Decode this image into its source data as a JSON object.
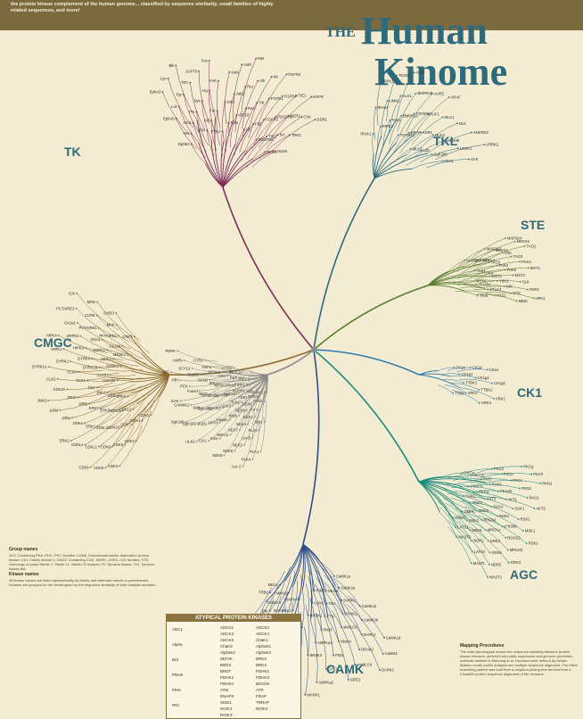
{
  "header": {
    "banner_text": "the protein kinase complement of the human genome... classified by sequence similarity, small families of highly related sequences, and more!",
    "the": "THE",
    "human": "Human",
    "kinome": "Kinome"
  },
  "groups": [
    {
      "name": "TK",
      "color": "#7a2e5a"
    },
    {
      "name": "TKL",
      "color": "#2e6a7a"
    },
    {
      "name": "STE",
      "color": "#5a7a2e"
    },
    {
      "name": "CK1",
      "color": "#2e7aaa"
    },
    {
      "name": "AGC",
      "color": "#1a8a7a"
    },
    {
      "name": "CAMK",
      "color": "#2e4e8a"
    },
    {
      "name": "CMGC",
      "color": "#8a6a2e"
    }
  ],
  "kinase_labels": {
    "TK": [
      "EphB2",
      "EphA5",
      "EphA3",
      "Yes",
      "Lck",
      "Lyn",
      "HCK",
      "Fgr",
      "Blk",
      "ITK",
      "TEC",
      "BTK",
      "Syk",
      "ZAP70",
      "Abl",
      "Arg",
      "Fes",
      "Fer",
      "FAK",
      "PYK2",
      "Jak1",
      "Jak2",
      "Tyk2",
      "Jak3",
      "InsR",
      "IGF1R",
      "Ret",
      "Met",
      "Ron",
      "Alk",
      "Ltk",
      "Trk",
      "Kit",
      "Flt3",
      "FGFR1",
      "FGFR2",
      "FGFR3",
      "FGFR4",
      "PDGFRa",
      "PDGFRb",
      "TIE1",
      "TIE2",
      "HER2",
      "EGFR",
      "Src",
      "CSK",
      "ROR1",
      "TRKC",
      "DDR1",
      "MuSK"
    ],
    "TKL": [
      "IRAK1",
      "IRAK4",
      "RIPK1",
      "RIPK2",
      "LIMK1",
      "TESK1",
      "TAK1",
      "ALK1",
      "ALK4",
      "BMPR1A",
      "BMPR1B",
      "TGFbR1",
      "TGFbR2",
      "ActR2",
      "BRAF",
      "RAF1",
      "ARAF",
      "KSR1",
      "MLK1",
      "MLK2",
      "MLK3",
      "DLK",
      "LZK",
      "HH498",
      "ANKRD3",
      "SgK288",
      "LRRK1",
      "LRRK2",
      "MLKL",
      "ZAK"
    ],
    "STE": [
      "MAP2K1",
      "MAP2K2",
      "MAP2K4",
      "MAP2K7",
      "MEKK1",
      "MEKK2",
      "MEKK3",
      "ASK",
      "TAO1",
      "TAO2",
      "TAO3",
      "PAK1",
      "PAK2",
      "PAK4",
      "PAK5",
      "PAK6",
      "MST1",
      "MST2",
      "MST3",
      "MST4",
      "YSK1",
      "SLK",
      "LOK",
      "NIK",
      "OSR1",
      "STLK3",
      "GCK",
      "HPK1",
      "KHS1",
      "MINK",
      "TNIK"
    ],
    "CK1": [
      "CK1a",
      "CK1d",
      "CK1e",
      "CK1g1",
      "CK1g2",
      "CK1g3",
      "TTBK1",
      "TTBK2",
      "VRK1",
      "VRK2",
      "VRK3",
      "TTBK"
    ],
    "AGC": [
      "PKCa",
      "PKCb",
      "PKCg",
      "PKCd",
      "PKCe",
      "PKCh",
      "PKCi",
      "PKCz",
      "PKN1",
      "PKN2",
      "PKN3",
      "PKAcA",
      "PKAcB",
      "PKG1",
      "PKG2",
      "AKT1",
      "AKT2",
      "AKT3",
      "SGK1",
      "SGK2",
      "SGK3",
      "RSK1",
      "RSK2",
      "RSK3",
      "MSK1",
      "MSK2",
      "p70S6K",
      "PDK1",
      "ROCK1",
      "ROCK2",
      "DMPK",
      "MRCKa",
      "MRCKb",
      "GRK2",
      "GRK3",
      "GRK4",
      "GRK5",
      "GRK6",
      "GRK7",
      "NDR1",
      "NDR2",
      "LATS1",
      "LATS2",
      "MAST1",
      "MAST2",
      "MASTL"
    ],
    "CAMK": [
      "CaMK1a",
      "CaMK1b",
      "CaMK1d",
      "CaMK2a",
      "CaMK2b",
      "CaMK4",
      "DAPK1",
      "DAPK2",
      "DAPK3",
      "DRAK1",
      "DRAK2",
      "MLCK",
      "skMLCK",
      "smMLCK",
      "Trio",
      "Obscn",
      "SPEG",
      "TTN",
      "PIM1",
      "PIM2",
      "PIM3",
      "CHK1",
      "CHK2",
      "AMPKa1",
      "AMPKa2",
      "BRSK1",
      "BRSK2",
      "MARK1",
      "MARK2",
      "MARK3",
      "MARK4",
      "PhKg1",
      "PhKg2",
      "DCAMKL1",
      "DCAMKL2",
      "MAPKAPK2",
      "MAPKAPK3",
      "MNK1",
      "MNK2",
      "RSKL1",
      "TSSK1",
      "TSSK2",
      "SNRK",
      "NuaK1",
      "QIK",
      "SIK",
      "MELK",
      "STK33",
      "TRB1",
      "TRB2",
      "TRB3"
    ],
    "CMGC": [
      "CDK1",
      "CDK2",
      "CDK3",
      "CDK4",
      "CDK5",
      "CDK6",
      "CDK7",
      "CDK8",
      "CDK9",
      "CDK10",
      "CDKL1",
      "CDKL2",
      "CDKL3",
      "CDKL4",
      "CDKL5",
      "ERK1",
      "ERK2",
      "ERK3",
      "ERK4",
      "ERK5",
      "ERK7",
      "p38a",
      "p38b",
      "p38g",
      "p38d",
      "JNK1",
      "JNK2",
      "JNK3",
      "NLK",
      "GSK3A",
      "GSK3B",
      "CLK1",
      "CLK2",
      "CLK3",
      "CLK4",
      "DYRK1A",
      "DYRK1B",
      "DYRK2",
      "DYRK3",
      "DYRK4",
      "HIPK1",
      "HIPK2",
      "HIPK3",
      "HIPK4",
      "SRPK1",
      "SRPK2",
      "MSSK1",
      "PRP4",
      "CK2a1",
      "CK2a2",
      "PCTAIRE1",
      "PCTAIRE2",
      "PFTAIRE1",
      "CCRK",
      "ICK",
      "MAK",
      "MOK",
      "CRK7",
      "CHED"
    ],
    "other": [
      "Wee1",
      "Myt1",
      "PLK1",
      "PLK2",
      "PLK3",
      "PLK4",
      "Aur A",
      "Aur B",
      "Aur C",
      "NEK1",
      "NEK2",
      "NEK3",
      "NEK4",
      "NEK5",
      "NEK6",
      "NEK7",
      "NEK8",
      "NEK9",
      "NEK11",
      "IKKa",
      "IKKb",
      "IKKe",
      "TBK1",
      "Haspin",
      "TLK1",
      "TLK2",
      "ULK1",
      "ULK2",
      "ULK3",
      "BUB1",
      "BUBR1",
      "SgK307",
      "SgK269",
      "SgK110",
      "SgK493",
      "SgK196",
      "SgK396",
      "Slob",
      "PINK1",
      "CAMKK1",
      "CAMKK2",
      "AAK1",
      "BIKE",
      "GAK",
      "MPSK1",
      "Fused",
      "IRE1",
      "IRE2",
      "PEK",
      "PKR",
      "GCN2",
      "HRI",
      "CDC7",
      "Bud32",
      "KIS",
      "SCYL1",
      "SCYL2",
      "SCYL3",
      "ANPa",
      "ANPb",
      "CYGD",
      "CYGF",
      "PERK"
    ]
  },
  "legend": {
    "title_group": "Group names",
    "group_text": "AGC Containing PKA, PKG, PKC families; CAMK Calcium/calmodulin-dependent protein kinase; CK1 Casein kinase 1; CMGC Containing CDK, MAPK, GSK3, CLK families; STE Homologs of yeast Sterile 7, Sterile 11, Sterile 20 kinases; TK Tyrosine kinase; TKL Tyrosine kinase-like",
    "title_kinase": "Kinase names",
    "kinase_text": "All kinase names are listed alphabetically by family, with alternate names in parentheses. Kinases are grouped on the dendrogram by the sequence similarity of their catalytic domains."
  },
  "atypical": {
    "title": "ATYPICAL PROTEIN KINASES",
    "families": [
      "ABC1",
      "Alpha",
      "Brd",
      "PDHK",
      "PIKK",
      "RIO"
    ],
    "members": [
      "ADCK1",
      "ADCK2",
      "ADCK3",
      "ADCK4",
      "ADCK5",
      "ChaK1",
      "ChaK2",
      "AlphaK1",
      "AlphaK2",
      "AlphaK3",
      "eEF2K",
      "BRD2",
      "BRD3",
      "BRD4",
      "BRDT",
      "PDHK1",
      "PDHK2",
      "PDHK3",
      "PDHK4",
      "BCKDK",
      "ATM",
      "ATR",
      "DNAPK",
      "FRAP",
      "SMG1",
      "TRRAP",
      "RIOK1",
      "RIOK2",
      "RIOK3"
    ]
  },
  "mapping": {
    "title": "Mapping Procedures",
    "text": "The main dendrogram shows the sequence similarity between protein kinase domains, derived from public sequences and genome prediction methods detailed in Manning et al. Domains were defined by hidden Markov model profile analysis and multiple sequence alignment. The initial branching pattern was built from a neighbor-joining tree derived from a ClustalW protein sequence alignment of the domains."
  }
}
